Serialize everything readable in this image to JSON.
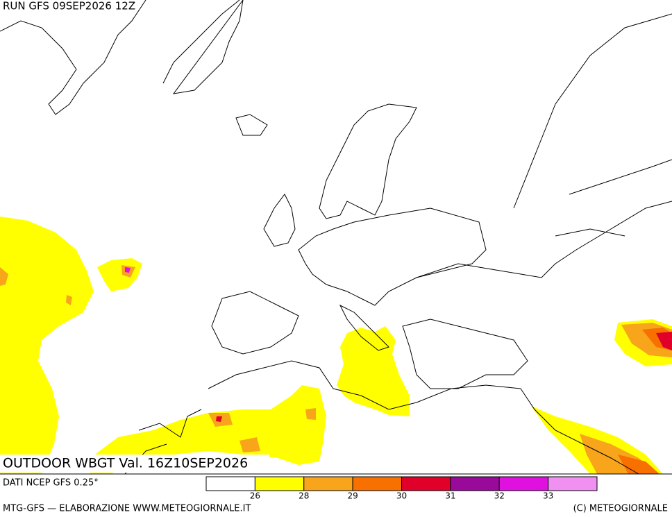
{
  "header": {
    "run": "RUN GFS 09SEP2026 12Z"
  },
  "map": {
    "title": "OUTDOOR WBGT Val. 16Z10SEP2026"
  },
  "legend": {
    "source": "DATI NCEP GFS 0.25°",
    "colors": [
      "#ffffff",
      "#ffff00",
      "#f8a51c",
      "#f87000",
      "#e0002a",
      "#9a0a9a",
      "#e010e0",
      "#f090f0"
    ],
    "ticks": [
      26,
      28,
      29,
      30,
      31,
      32,
      33
    ]
  },
  "footer": {
    "left": "MTG-GFS — ELABORAZIONE WWW.METEOGIORNALE.IT",
    "right": "(C) METEOGIORNALE"
  }
}
